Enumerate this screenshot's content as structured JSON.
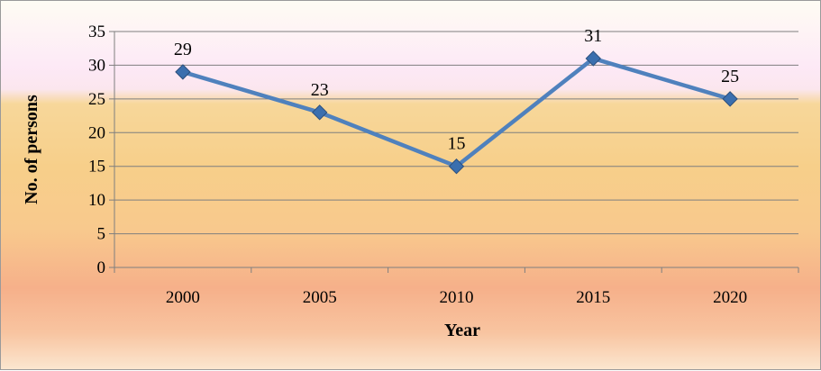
{
  "chart_data": {
    "type": "line",
    "title": "",
    "xlabel": "Year",
    "ylabel": "No. of persons",
    "categories": [
      "2000",
      "2005",
      "2010",
      "2015",
      "2020"
    ],
    "series": [
      {
        "values": [
          29,
          23,
          15,
          31,
          25
        ]
      }
    ],
    "ylim": [
      0,
      35
    ],
    "yticks": [
      0,
      5,
      10,
      15,
      20,
      25,
      30,
      35
    ],
    "grid": true,
    "data_labels": true,
    "marker": "diamond",
    "colors": {
      "line": "#4f81bd",
      "marker": "#3b6fae",
      "grid": "#7f7f7f"
    }
  }
}
